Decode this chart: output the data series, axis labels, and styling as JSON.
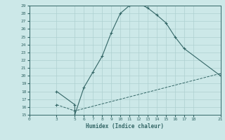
{
  "xlabel": "Humidex (Indice chaleur)",
  "ylabel": "",
  "bg_color": "#cce8e8",
  "grid_color": "#aed0d0",
  "line_color": "#336666",
  "xlim": [
    0,
    21
  ],
  "ylim": [
    15,
    29
  ],
  "xticks": [
    0,
    3,
    5,
    6,
    7,
    8,
    9,
    10,
    11,
    12,
    13,
    14,
    15,
    16,
    17,
    18,
    21
  ],
  "yticks": [
    15,
    16,
    17,
    18,
    19,
    20,
    21,
    22,
    23,
    24,
    25,
    26,
    27,
    28,
    29
  ],
  "curve1_x": [
    3,
    5,
    5,
    6,
    7,
    8,
    9,
    10,
    11,
    12,
    13,
    14,
    15,
    16,
    17,
    21
  ],
  "curve1_y": [
    18,
    16.3,
    15.0,
    18.5,
    20.5,
    22.5,
    25.5,
    28.0,
    29.0,
    29.3,
    28.7,
    27.8,
    26.8,
    25.0,
    23.5,
    20.0
  ],
  "curve2_x": [
    3,
    5,
    21
  ],
  "curve2_y": [
    16.3,
    15.5,
    20.3
  ],
  "fig_width": 3.2,
  "fig_height": 2.0,
  "dpi": 100
}
